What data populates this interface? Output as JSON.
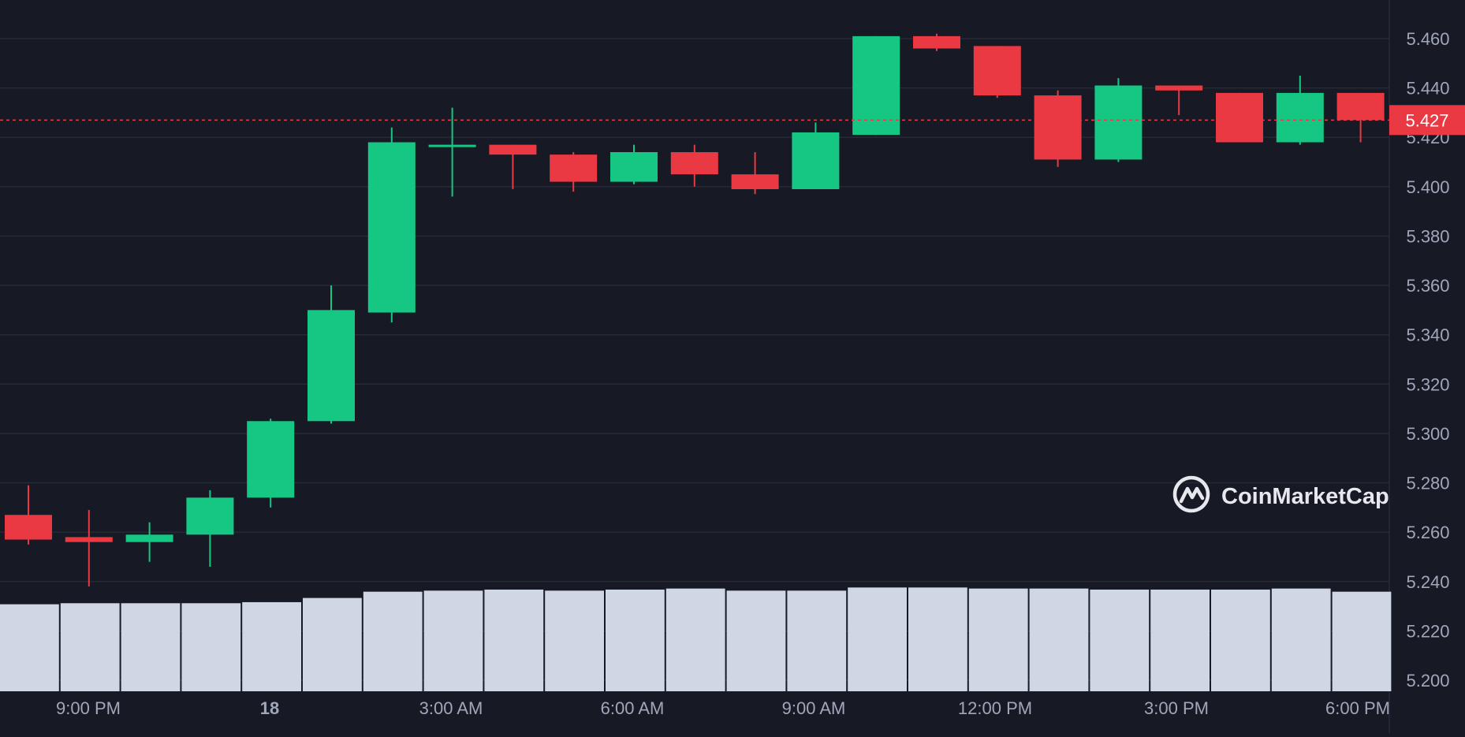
{
  "chart_data": {
    "type": "candlestick",
    "ylim": [
      5.19,
      5.47
    ],
    "y_ticks": [
      "5.460",
      "5.440",
      "5.420",
      "5.400",
      "5.380",
      "5.360",
      "5.340",
      "5.320",
      "5.300",
      "5.280",
      "5.260",
      "5.240",
      "5.220",
      "5.200"
    ],
    "x_ticks": [
      {
        "label": "9:00 PM",
        "bold": false
      },
      {
        "label": "18",
        "bold": true
      },
      {
        "label": "3:00 AM",
        "bold": false
      },
      {
        "label": "6:00 AM",
        "bold": false
      },
      {
        "label": "9:00 AM",
        "bold": false
      },
      {
        "label": "12:00 PM",
        "bold": false
      },
      {
        "label": "3:00 PM",
        "bold": false
      },
      {
        "label": "6:00 PM",
        "bold": false
      }
    ],
    "current_price": "5.427",
    "grid": true,
    "candles": [
      {
        "open": 5.267,
        "high": 5.279,
        "low": 5.255,
        "close": 5.257
      },
      {
        "open": 5.258,
        "high": 5.269,
        "low": 5.238,
        "close": 5.256
      },
      {
        "open": 5.256,
        "high": 5.264,
        "low": 5.248,
        "close": 5.259
      },
      {
        "open": 5.259,
        "high": 5.277,
        "low": 5.246,
        "close": 5.274
      },
      {
        "open": 5.274,
        "high": 5.306,
        "low": 5.27,
        "close": 5.305
      },
      {
        "open": 5.305,
        "high": 5.36,
        "low": 5.304,
        "close": 5.35
      },
      {
        "open": 5.349,
        "high": 5.424,
        "low": 5.345,
        "close": 5.418
      },
      {
        "open": 5.417,
        "high": 5.432,
        "low": 5.396,
        "close": 5.417
      },
      {
        "open": 5.417,
        "high": 5.417,
        "low": 5.399,
        "close": 5.413
      },
      {
        "open": 5.413,
        "high": 5.414,
        "low": 5.398,
        "close": 5.402
      },
      {
        "open": 5.402,
        "high": 5.417,
        "low": 5.401,
        "close": 5.414
      },
      {
        "open": 5.414,
        "high": 5.417,
        "low": 5.4,
        "close": 5.405
      },
      {
        "open": 5.405,
        "high": 5.414,
        "low": 5.397,
        "close": 5.399
      },
      {
        "open": 5.399,
        "high": 5.426,
        "low": 5.399,
        "close": 5.422
      },
      {
        "open": 5.421,
        "high": 5.461,
        "low": 5.421,
        "close": 5.461
      },
      {
        "open": 5.461,
        "high": 5.462,
        "low": 5.455,
        "close": 5.456
      },
      {
        "open": 5.457,
        "high": 5.457,
        "low": 5.436,
        "close": 5.437
      },
      {
        "open": 5.437,
        "high": 5.439,
        "low": 5.408,
        "close": 5.411
      },
      {
        "open": 5.411,
        "high": 5.444,
        "low": 5.41,
        "close": 5.441
      },
      {
        "open": 5.441,
        "high": 5.441,
        "low": 5.429,
        "close": 5.439
      },
      {
        "open": 5.438,
        "high": 5.438,
        "low": 5.418,
        "close": 5.418
      },
      {
        "open": 5.418,
        "high": 5.445,
        "low": 5.417,
        "close": 5.438
      },
      {
        "open": 5.438,
        "high": 5.438,
        "low": 5.418,
        "close": 5.427
      }
    ],
    "volume": [
      0.83,
      0.84,
      0.84,
      0.84,
      0.85,
      0.89,
      0.95,
      0.96,
      0.97,
      0.96,
      0.97,
      0.98,
      0.96,
      0.96,
      0.99,
      0.99,
      0.98,
      0.98,
      0.97,
      0.97,
      0.97,
      0.98,
      0.95
    ]
  },
  "logo": {
    "text": "CoinMarketCap",
    "icon": "coinmarketcap-logo-icon"
  },
  "colors": {
    "background": "#171924",
    "up": "#16c784",
    "down": "#ea3943",
    "grid": "#262a36",
    "volume": "#cfd6e4",
    "axis_text": "#a1a7bb",
    "price_tag": "#ea3943"
  }
}
